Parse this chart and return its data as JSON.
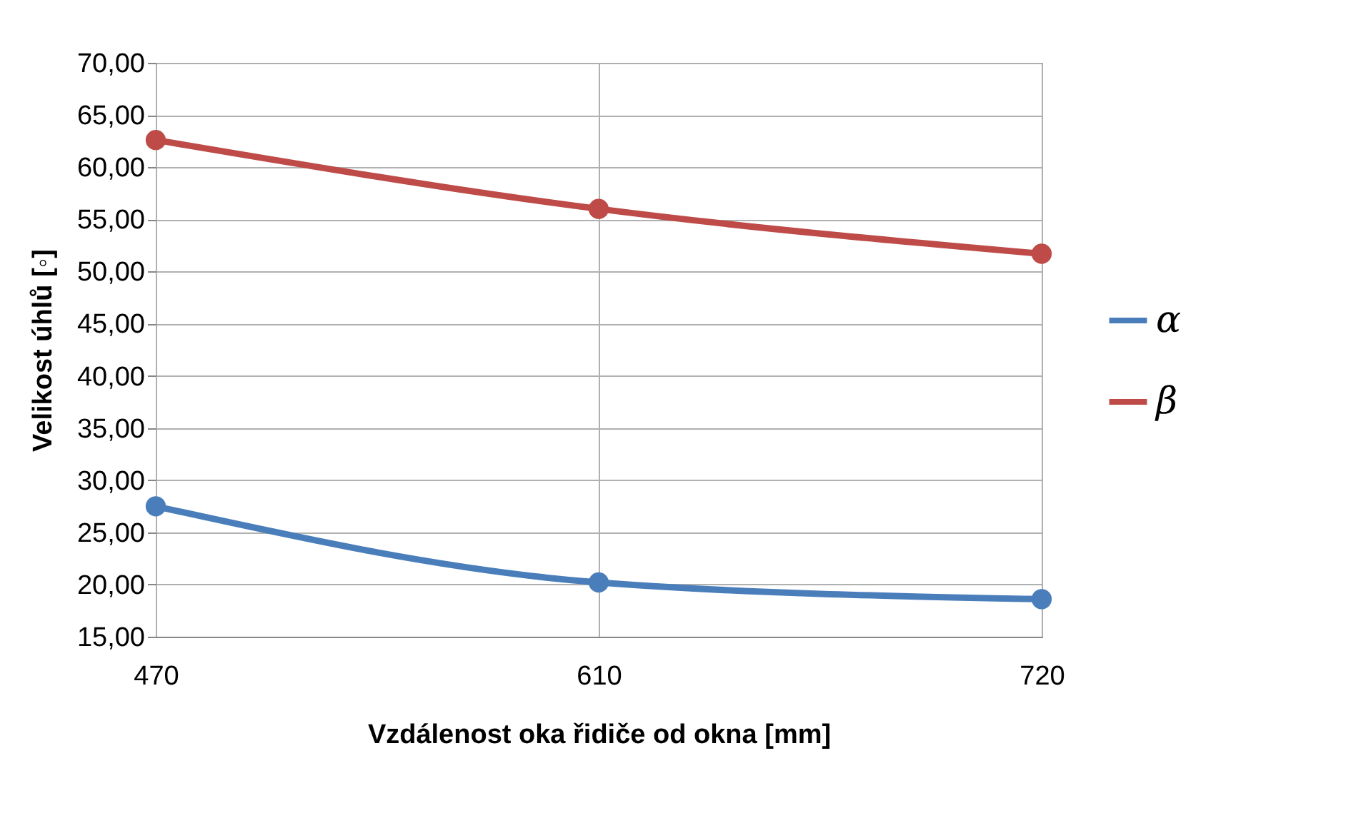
{
  "chart_data": {
    "type": "line",
    "xlabel": "Vzdálenost oka řidiče od okna [mm]",
    "ylabel": "Velikost úhlů [◦]",
    "categories": [
      "470",
      "610",
      "720"
    ],
    "series": [
      {
        "name": "α",
        "color": "#4a7ebb",
        "values": [
          27.5,
          20.2,
          18.6
        ]
      },
      {
        "name": "β",
        "color": "#be4b48",
        "values": [
          62.6,
          56.0,
          51.7
        ]
      }
    ],
    "ylim": [
      15,
      70
    ],
    "yticks": [
      {
        "value": 15,
        "label": "15,00"
      },
      {
        "value": 20,
        "label": "20,00"
      },
      {
        "value": 25,
        "label": "25,00"
      },
      {
        "value": 30,
        "label": "30,00"
      },
      {
        "value": 35,
        "label": "35,00"
      },
      {
        "value": 40,
        "label": "40,00"
      },
      {
        "value": 45,
        "label": "45,00"
      },
      {
        "value": 50,
        "label": "50,00"
      },
      {
        "value": 55,
        "label": "55,00"
      },
      {
        "value": 60,
        "label": "60,00"
      },
      {
        "value": 65,
        "label": "65,00"
      },
      {
        "value": 70,
        "label": "70,00"
      }
    ],
    "grid": true,
    "legend": "right",
    "marker": "circle",
    "line_style": "solid"
  }
}
